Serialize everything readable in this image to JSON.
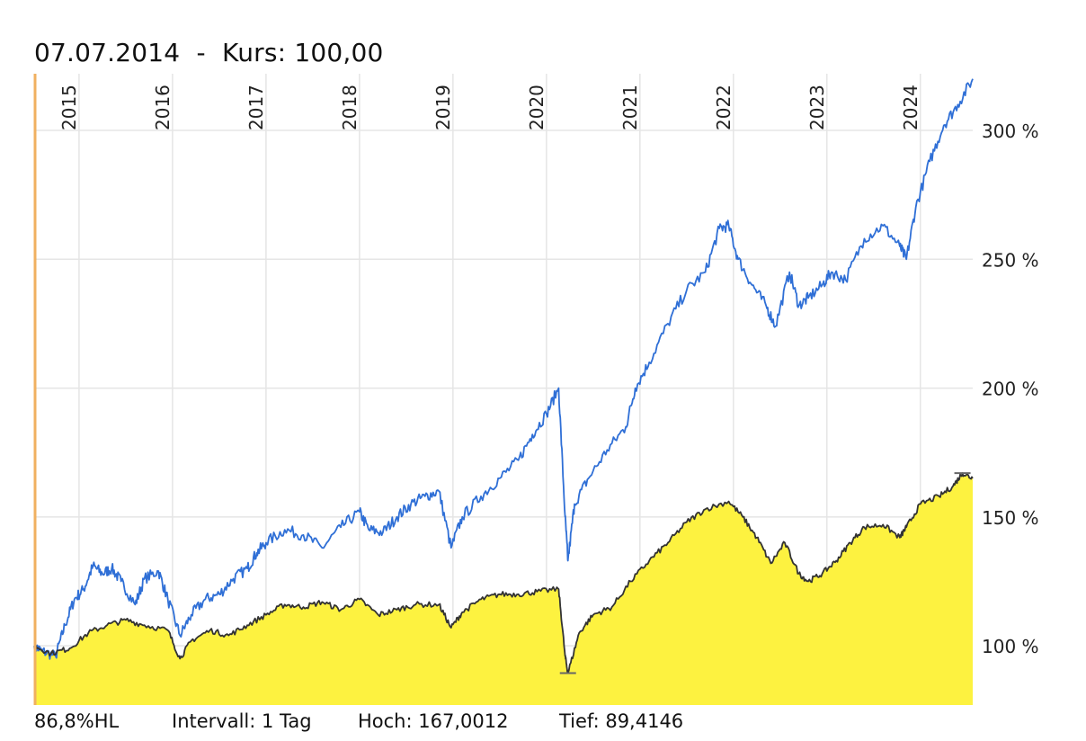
{
  "header": {
    "date": "07.07.2014",
    "separator": "-",
    "price_label": "Kurs: 100,00"
  },
  "footer": {
    "range": "86,8%HL",
    "interval": "Intervall: 1 Tag",
    "high": "Hoch: 167,0012",
    "low": "Tief: 89,4146"
  },
  "colors": {
    "blue_line": "#2f6fd6",
    "yellow_fill": "#fdf240",
    "black_line": "#333333",
    "grid": "#e5e5e5",
    "left_marker": "#f0b060"
  },
  "chart_data": {
    "type": "line",
    "title": "",
    "xlabel": "",
    "ylabel": "",
    "ylim": [
      77,
      322
    ],
    "xlim": [
      2014.52,
      2024.56
    ],
    "x_ticks": [
      {
        "label": "2015",
        "value": 2015
      },
      {
        "label": "2016",
        "value": 2016
      },
      {
        "label": "2017",
        "value": 2017
      },
      {
        "label": "2018",
        "value": 2018
      },
      {
        "label": "2019",
        "value": 2019
      },
      {
        "label": "2020",
        "value": 2020
      },
      {
        "label": "2021",
        "value": 2021
      },
      {
        "label": "2022",
        "value": 2022
      },
      {
        "label": "2023",
        "value": 2023
      },
      {
        "label": "2024",
        "value": 2024
      }
    ],
    "y_ticks": [
      {
        "label": "100 %",
        "value": 100
      },
      {
        "label": "150 %",
        "value": 150
      },
      {
        "label": "200 %",
        "value": 200
      },
      {
        "label": "250 %",
        "value": 250
      },
      {
        "label": "300 %",
        "value": 300
      }
    ],
    "grid": true,
    "series": [
      {
        "style": "line",
        "color": "#2f6fd6",
        "points": [
          [
            2014.52,
            100
          ],
          [
            2014.6,
            98
          ],
          [
            2014.75,
            96
          ],
          [
            2014.85,
            108
          ],
          [
            2014.95,
            118
          ],
          [
            2015.05,
            122
          ],
          [
            2015.15,
            131
          ],
          [
            2015.25,
            128
          ],
          [
            2015.35,
            130
          ],
          [
            2015.45,
            125
          ],
          [
            2015.6,
            116
          ],
          [
            2015.7,
            126
          ],
          [
            2015.85,
            129
          ],
          [
            2015.95,
            118
          ],
          [
            2016.08,
            104
          ],
          [
            2016.2,
            112
          ],
          [
            2016.35,
            118
          ],
          [
            2016.5,
            120
          ],
          [
            2016.65,
            126
          ],
          [
            2016.8,
            130
          ],
          [
            2016.9,
            136
          ],
          [
            2017.0,
            140
          ],
          [
            2017.2,
            145
          ],
          [
            2017.4,
            143
          ],
          [
            2017.6,
            138
          ],
          [
            2017.8,
            146
          ],
          [
            2018.0,
            152
          ],
          [
            2018.1,
            145
          ],
          [
            2018.25,
            144
          ],
          [
            2018.4,
            150
          ],
          [
            2018.55,
            155
          ],
          [
            2018.7,
            158
          ],
          [
            2018.85,
            160
          ],
          [
            2018.98,
            138
          ],
          [
            2019.1,
            150
          ],
          [
            2019.3,
            158
          ],
          [
            2019.5,
            165
          ],
          [
            2019.7,
            172
          ],
          [
            2019.85,
            182
          ],
          [
            2020.0,
            190
          ],
          [
            2020.13,
            200
          ],
          [
            2020.2,
            150
          ],
          [
            2020.23,
            133
          ],
          [
            2020.3,
            155
          ],
          [
            2020.45,
            165
          ],
          [
            2020.65,
            176
          ],
          [
            2020.85,
            185
          ],
          [
            2020.95,
            200
          ],
          [
            2021.1,
            210
          ],
          [
            2021.3,
            225
          ],
          [
            2021.5,
            238
          ],
          [
            2021.7,
            245
          ],
          [
            2021.85,
            262
          ],
          [
            2021.95,
            263
          ],
          [
            2022.05,
            250
          ],
          [
            2022.2,
            240
          ],
          [
            2022.35,
            232
          ],
          [
            2022.45,
            224
          ],
          [
            2022.6,
            245
          ],
          [
            2022.7,
            232
          ],
          [
            2022.8,
            235
          ],
          [
            2022.95,
            240
          ],
          [
            2023.05,
            245
          ],
          [
            2023.2,
            242
          ],
          [
            2023.4,
            258
          ],
          [
            2023.6,
            263
          ],
          [
            2023.78,
            255
          ],
          [
            2023.85,
            250
          ],
          [
            2023.95,
            270
          ],
          [
            2024.1,
            288
          ],
          [
            2024.25,
            302
          ],
          [
            2024.4,
            310
          ],
          [
            2024.56,
            320
          ]
        ]
      },
      {
        "style": "area",
        "color": "#333333",
        "fill": "#fdf240",
        "points": [
          [
            2014.52,
            100
          ],
          [
            2014.7,
            97
          ],
          [
            2014.9,
            99
          ],
          [
            2015.1,
            105
          ],
          [
            2015.3,
            108
          ],
          [
            2015.5,
            110
          ],
          [
            2015.7,
            108
          ],
          [
            2015.95,
            106
          ],
          [
            2016.08,
            95
          ],
          [
            2016.2,
            102
          ],
          [
            2016.4,
            106
          ],
          [
            2016.6,
            104
          ],
          [
            2016.8,
            108
          ],
          [
            2017.0,
            112
          ],
          [
            2017.2,
            116
          ],
          [
            2017.4,
            115
          ],
          [
            2017.6,
            117
          ],
          [
            2017.8,
            114
          ],
          [
            2018.0,
            118
          ],
          [
            2018.2,
            112
          ],
          [
            2018.4,
            114
          ],
          [
            2018.6,
            116
          ],
          [
            2018.85,
            116
          ],
          [
            2018.98,
            107
          ],
          [
            2019.1,
            113
          ],
          [
            2019.3,
            118
          ],
          [
            2019.5,
            120
          ],
          [
            2019.7,
            120
          ],
          [
            2019.9,
            121
          ],
          [
            2020.13,
            122
          ],
          [
            2020.2,
            96
          ],
          [
            2020.23,
            89.41
          ],
          [
            2020.35,
            105
          ],
          [
            2020.5,
            112
          ],
          [
            2020.7,
            115
          ],
          [
            2020.9,
            125
          ],
          [
            2021.1,
            133
          ],
          [
            2021.3,
            140
          ],
          [
            2021.5,
            148
          ],
          [
            2021.7,
            153
          ],
          [
            2021.95,
            156
          ],
          [
            2022.1,
            150
          ],
          [
            2022.25,
            142
          ],
          [
            2022.4,
            132
          ],
          [
            2022.55,
            140
          ],
          [
            2022.7,
            128
          ],
          [
            2022.8,
            125
          ],
          [
            2022.95,
            128
          ],
          [
            2023.1,
            133
          ],
          [
            2023.25,
            140
          ],
          [
            2023.4,
            146
          ],
          [
            2023.6,
            147
          ],
          [
            2023.78,
            142
          ],
          [
            2023.85,
            146
          ],
          [
            2024.0,
            155
          ],
          [
            2024.2,
            158
          ],
          [
            2024.35,
            162
          ],
          [
            2024.45,
            167.0
          ],
          [
            2024.56,
            165
          ]
        ]
      }
    ],
    "high": 167.0012,
    "low": 89.4146
  }
}
